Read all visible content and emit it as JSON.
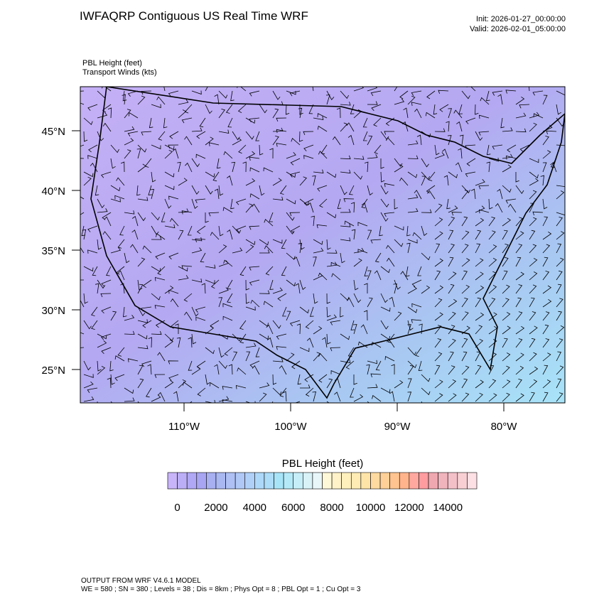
{
  "header": {
    "title": "IWFAQRP Contiguous US Real Time WRF",
    "init": "Init: 2026-01-27_00:00:00",
    "valid": "Valid: 2026-02-01_05:00:00",
    "field": "PBL Height   (feet)",
    "winds": "Transport Winds   (kts)"
  },
  "map": {
    "lat_ticks": [
      {
        "value": 45,
        "label": "45°N"
      },
      {
        "value": 40,
        "label": "40°N"
      },
      {
        "value": 35,
        "label": "35°N"
      },
      {
        "value": 30,
        "label": "30°N"
      },
      {
        "value": 25,
        "label": "25°N"
      }
    ],
    "lon_ticks": [
      {
        "value": -110,
        "label": "110°W"
      },
      {
        "value": -100,
        "label": "100°W"
      },
      {
        "value": -90,
        "label": "90°W"
      },
      {
        "value": -80,
        "label": "80°W"
      }
    ]
  },
  "colorbar": {
    "title": "PBL Height  (feet)",
    "ticks": [
      0,
      2000,
      4000,
      6000,
      8000,
      10000,
      12000,
      14000
    ],
    "colors": [
      "#c8b4f8",
      "#bcaef6",
      "#b0a8f4",
      "#a8a6f2",
      "#a8b0f2",
      "#aab8f2",
      "#aec0f4",
      "#b0c8f6",
      "#b0d0f8",
      "#aed8f8",
      "#acdcf8",
      "#a8e4f8",
      "#b4eaf8",
      "#c6eef8",
      "#d8f2f8",
      "#e8f6fa",
      "#fff8d8",
      "#fff2c8",
      "#fff0bc",
      "#ffecb4",
      "#ffe4a8",
      "#ffdaa0",
      "#ffd098",
      "#ffc490",
      "#ffb48c",
      "#ffa8a0",
      "#ff9ca0",
      "#f0a8b0",
      "#f0b4bc",
      "#f4c0c8",
      "#f8d0d4",
      "#fce0e4"
    ]
  },
  "footer": {
    "line1": "OUTPUT FROM WRF V4.6.1 MODEL",
    "line2": "WE = 580 ; SN = 380 ; Levels = 38 ; Dis = 8km ; Phys Opt = 8 ; PBL Opt = 1 ; Cu Opt = 3"
  }
}
